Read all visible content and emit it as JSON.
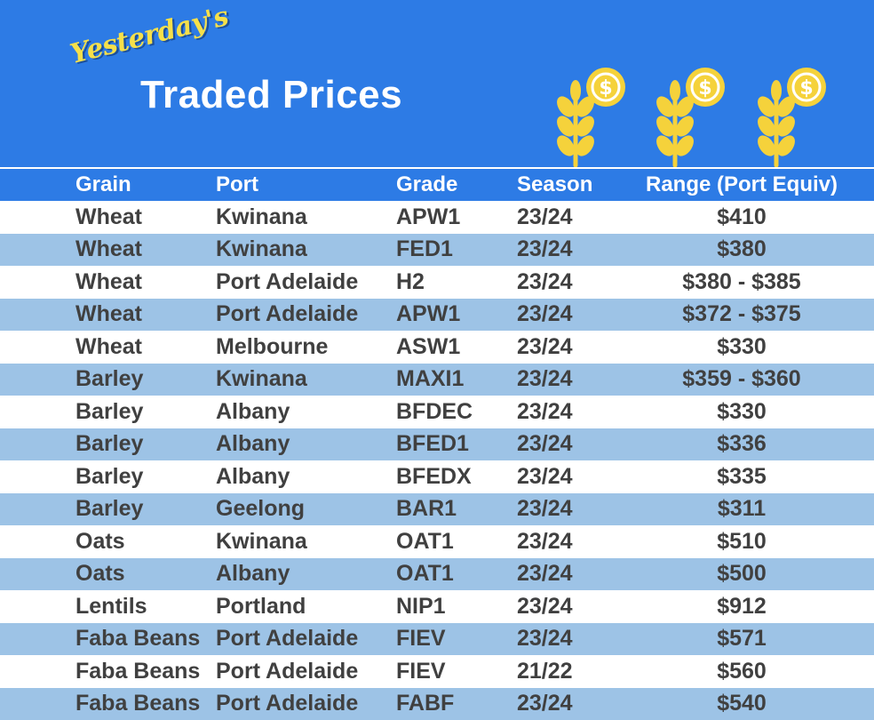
{
  "header": {
    "subtitle": "Yesterday's",
    "title": "Traded Prices",
    "icons": [
      "grain-coin-icon",
      "grain-coin-icon",
      "grain-coin-icon"
    ]
  },
  "colors": {
    "banner": "#2d7be5",
    "row_alt": "#9dc3e6",
    "text": "#404040",
    "subtitle": "#f6e04a",
    "icon": "#f5d23b"
  },
  "table": {
    "columns": [
      "Grain",
      "Port",
      "Grade",
      "Season",
      "Range (Port Equiv)"
    ],
    "rows": [
      [
        "Wheat",
        "Kwinana",
        "APW1",
        "23/24",
        "$410"
      ],
      [
        "Wheat",
        "Kwinana",
        "FED1",
        "23/24",
        "$380"
      ],
      [
        "Wheat",
        "Port Adelaide",
        "H2",
        "23/24",
        "$380 - $385"
      ],
      [
        "Wheat",
        "Port Adelaide",
        "APW1",
        "23/24",
        "$372 - $375"
      ],
      [
        "Wheat",
        "Melbourne",
        "ASW1",
        "23/24",
        "$330"
      ],
      [
        "Barley",
        "Kwinana",
        "MAXI1",
        "23/24",
        "$359 - $360"
      ],
      [
        "Barley",
        "Albany",
        "BFDEC",
        "23/24",
        "$330"
      ],
      [
        "Barley",
        "Albany",
        "BFED1",
        "23/24",
        "$336"
      ],
      [
        "Barley",
        "Albany",
        "BFEDX",
        "23/24",
        "$335"
      ],
      [
        "Barley",
        "Geelong",
        "BAR1",
        "23/24",
        "$311"
      ],
      [
        "Oats",
        "Kwinana",
        "OAT1",
        "23/24",
        "$510"
      ],
      [
        "Oats",
        "Albany",
        "OAT1",
        "23/24",
        "$500"
      ],
      [
        "Lentils",
        "Portland",
        "NIP1",
        "23/24",
        "$912"
      ],
      [
        "Faba Beans",
        "Port Adelaide",
        "FIEV",
        "23/24",
        "$571"
      ],
      [
        "Faba Beans",
        "Port Adelaide",
        "FIEV",
        "21/22",
        "$560"
      ],
      [
        "Faba Beans",
        "Port Adelaide",
        "FABF",
        "23/24",
        "$540"
      ]
    ]
  }
}
